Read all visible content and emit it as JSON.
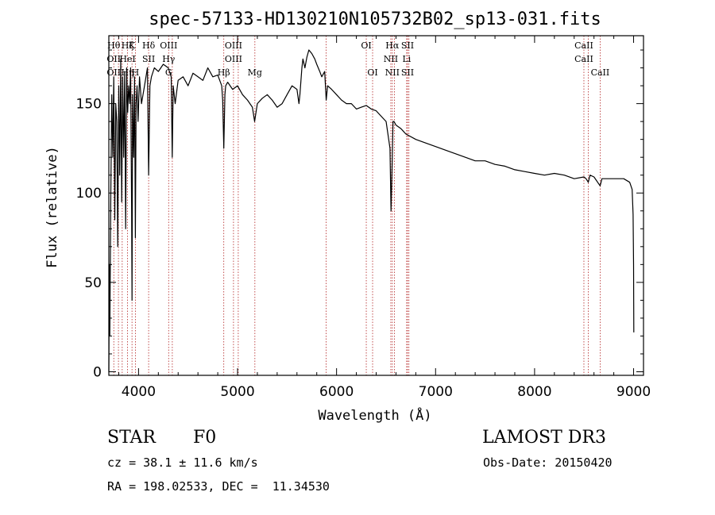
{
  "chart_data": {
    "type": "line",
    "title": "spec-57133-HD130210N105732B02_sp13-031.fits",
    "xlabel": "Wavelength (Å)",
    "ylabel": "Flux (relative)",
    "xlim": [
      3700,
      9100
    ],
    "ylim": [
      -2,
      188
    ],
    "xticks": [
      4000,
      5000,
      6000,
      7000,
      8000,
      9000
    ],
    "yticks": [
      0,
      50,
      100,
      150
    ],
    "series": [
      {
        "name": "flux",
        "x": [
          3700,
          3705,
          3710,
          3720,
          3730,
          3740,
          3750,
          3760,
          3770,
          3780,
          3790,
          3800,
          3810,
          3820,
          3830,
          3840,
          3850,
          3860,
          3870,
          3880,
          3890,
          3900,
          3910,
          3920,
          3930,
          3934,
          3940,
          3950,
          3960,
          3968,
          3975,
          3985,
          3995,
          4010,
          4030,
          4060,
          4090,
          4102,
          4115,
          4130,
          4160,
          4200,
          4250,
          4300,
          4330,
          4340,
          4350,
          4370,
          4400,
          4450,
          4500,
          4550,
          4600,
          4650,
          4700,
          4750,
          4800,
          4840,
          4850,
          4861,
          4872,
          4880,
          4900,
          4950,
          5000,
          5050,
          5100,
          5150,
          5172,
          5200,
          5250,
          5300,
          5350,
          5400,
          5450,
          5500,
          5550,
          5600,
          5620,
          5630,
          5650,
          5660,
          5680,
          5700,
          5720,
          5750,
          5780,
          5800,
          5830,
          5850,
          5880,
          5895,
          5910,
          5950,
          6000,
          6050,
          6100,
          6150,
          6200,
          6250,
          6300,
          6350,
          6400,
          6450,
          6500,
          6540,
          6550,
          6563,
          6570,
          6580,
          6600,
          6650,
          6700,
          6800,
          6900,
          7000,
          7100,
          7200,
          7300,
          7400,
          7500,
          7600,
          7700,
          7800,
          7900,
          8000,
          8100,
          8200,
          8300,
          8400,
          8498,
          8520,
          8542,
          8560,
          8600,
          8662,
          8680,
          8700,
          8800,
          8900,
          8960,
          8985,
          8995,
          9000,
          9002
        ],
        "values": [
          0,
          60,
          20,
          100,
          155,
          120,
          165,
          85,
          150,
          140,
          70,
          160,
          110,
          175,
          95,
          165,
          120,
          168,
          80,
          170,
          145,
          160,
          150,
          170,
          90,
          40,
          155,
          120,
          165,
          75,
          150,
          160,
          140,
          165,
          150,
          160,
          170,
          110,
          160,
          165,
          170,
          168,
          172,
          170,
          165,
          120,
          160,
          150,
          163,
          165,
          160,
          167,
          165,
          163,
          170,
          165,
          166,
          160,
          152,
          125,
          155,
          160,
          162,
          158,
          160,
          155,
          152,
          148,
          140,
          150,
          153,
          155,
          152,
          148,
          150,
          155,
          160,
          158,
          150,
          155,
          170,
          175,
          170,
          176,
          180,
          178,
          175,
          172,
          168,
          165,
          168,
          152,
          160,
          158,
          155,
          152,
          150,
          150,
          147,
          148,
          149,
          147,
          146,
          143,
          140,
          125,
          90,
          120,
          140,
          140,
          138,
          136,
          133,
          130,
          128,
          126,
          124,
          122,
          120,
          118,
          118,
          116,
          115,
          113,
          112,
          111,
          110,
          111,
          110,
          108,
          109,
          108,
          106,
          110,
          109,
          104,
          108,
          108,
          108,
          108,
          106,
          102,
          88,
          60,
          22
        ],
        "color": "#000000"
      }
    ],
    "line_markers": [
      {
        "wl": 3750,
        "labels": [
          "Hθ",
          "OII",
          "OII"
        ]
      },
      {
        "wl": 3797,
        "labels": [
          "",
          "",
          ""
        ]
      },
      {
        "wl": 3835,
        "labels": [
          "",
          "",
          ""
        ]
      },
      {
        "wl": 3889,
        "labels": [
          "Hζ",
          "HeI",
          "Hη"
        ]
      },
      {
        "wl": 3934,
        "labels": [
          "K",
          "",
          ""
        ]
      },
      {
        "wl": 3968,
        "labels": [
          "",
          "",
          "H"
        ]
      },
      {
        "wl": 4102,
        "labels": [
          "Hδ",
          "SII",
          ""
        ]
      },
      {
        "wl": 4304,
        "labels": [
          "OIII",
          "Hγ",
          "G"
        ]
      },
      {
        "wl": 4341,
        "labels": [
          "",
          "",
          ""
        ]
      },
      {
        "wl": 4861,
        "labels": [
          "",
          "",
          "Hβ"
        ]
      },
      {
        "wl": 4959,
        "labels": [
          "OIII",
          "OIII",
          ""
        ]
      },
      {
        "wl": 5007,
        "labels": [
          "",
          "",
          ""
        ]
      },
      {
        "wl": 5175,
        "labels": [
          "",
          "",
          "Mg"
        ]
      },
      {
        "wl": 5894,
        "labels": [
          "",
          "",
          ""
        ]
      },
      {
        "wl": 6300,
        "labels": [
          "OI",
          "",
          ""
        ]
      },
      {
        "wl": 6364,
        "labels": [
          "",
          "",
          "OI"
        ]
      },
      {
        "wl": 6548,
        "labels": [
          "",
          "NII",
          ""
        ]
      },
      {
        "wl": 6563,
        "labels": [
          "Hα",
          "",
          "NII"
        ]
      },
      {
        "wl": 6584,
        "labels": [
          "",
          "",
          ""
        ]
      },
      {
        "wl": 6708,
        "labels": [
          "",
          "Li",
          ""
        ]
      },
      {
        "wl": 6717,
        "labels": [
          "SII",
          "",
          "SII"
        ]
      },
      {
        "wl": 6731,
        "labels": [
          "",
          "",
          ""
        ]
      },
      {
        "wl": 8498,
        "labels": [
          "CaII",
          "CaII",
          ""
        ]
      },
      {
        "wl": 8542,
        "labels": [
          "",
          "",
          ""
        ]
      },
      {
        "wl": 8662,
        "labels": [
          "",
          "",
          "CaII"
        ]
      }
    ]
  },
  "info": {
    "object_class": "STAR",
    "subclass": "F0",
    "survey": "LAMOST DR3",
    "cz": "cz = 38.1 ± 11.6 km/s",
    "obs_date": "Obs-Date: 20150420",
    "coords": "RA = 198.02533, DEC =  11.34530"
  }
}
